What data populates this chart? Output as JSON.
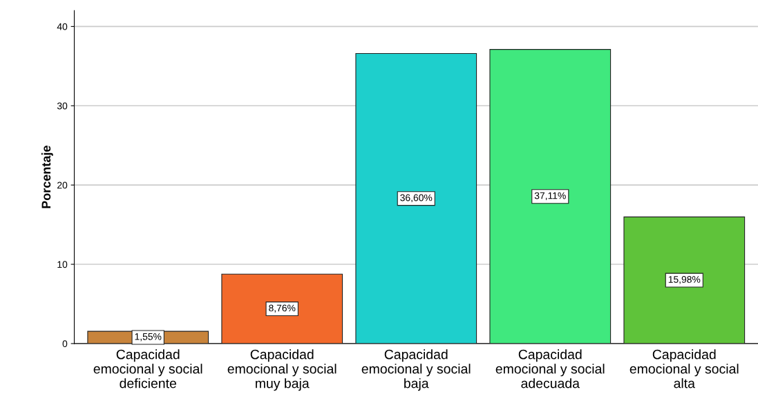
{
  "chart_data": {
    "type": "bar",
    "ylabel": "Porcentaje",
    "categories": [
      "Capacidad\nemocional y social\ndeficiente",
      "Capacidad\nemocional y social\nmuy baja",
      "Capacidad\nemocional y social\nbaja",
      "Capacidad\nemocional y social\nadecuada",
      "Capacidad\nemocional y social\nalta"
    ],
    "values": [
      1.55,
      8.76,
      36.6,
      37.11,
      15.98
    ],
    "value_labels": [
      "1,55%",
      "8,76%",
      "36,60%",
      "37,11%",
      "15,98%"
    ],
    "colors": [
      "#c8843c",
      "#f2692b",
      "#1ecfcc",
      "#40e87e",
      "#5fc33a"
    ],
    "ylim": [
      0,
      42
    ],
    "yticks": [
      0,
      10,
      20,
      30,
      40
    ],
    "grid": "y",
    "legend": false
  }
}
